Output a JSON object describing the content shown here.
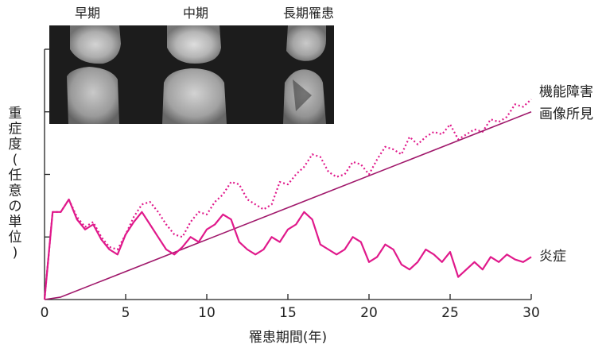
{
  "chart_data": {
    "type": "line",
    "xlabel": "罹患期間(年)",
    "ylabel": "重症度(任意の単位)",
    "xlim": [
      0,
      30
    ],
    "ylim": [
      0,
      100
    ],
    "x_ticks": [
      "0",
      "5",
      "10",
      "15",
      "20",
      "25",
      "30"
    ],
    "y_tick_values": [
      25,
      50,
      75,
      100
    ],
    "grid": false,
    "colors": {
      "series": "#e0198b",
      "axis": "#222222",
      "xray_bg": "#1c1c1c"
    },
    "stages": [
      "早期",
      "中期",
      "長期罹患"
    ],
    "series": [
      {
        "name": "機能障害",
        "style": "dotted",
        "x": [
          0,
          0.5,
          1.0,
          1.5,
          2.0,
          2.5,
          3.0,
          3.5,
          4.0,
          4.5,
          5.0,
          5.5,
          6.0,
          6.5,
          7.0,
          7.5,
          8.0,
          8.5,
          9.0,
          9.5,
          10.0,
          10.5,
          11.0,
          11.5,
          12.0,
          12.5,
          13.0,
          13.5,
          14.0,
          14.5,
          15.0,
          15.5,
          16.0,
          16.5,
          17.0,
          17.5,
          18.0,
          18.5,
          19.0,
          19.5,
          20.0,
          20.5,
          21.0,
          21.5,
          22.0,
          22.5,
          23.0,
          23.5,
          24.0,
          24.5,
          25.0,
          25.5,
          26.0,
          26.5,
          27.0,
          27.5,
          28.0,
          28.5,
          29.0,
          29.5,
          30.0
        ],
        "values": [
          0,
          35,
          35,
          40,
          33,
          29,
          31,
          25,
          21,
          20,
          26,
          33,
          38,
          39,
          35,
          30,
          26,
          25,
          31,
          35,
          34,
          39,
          42,
          47,
          46,
          40,
          38,
          36,
          38,
          47,
          46,
          50,
          53,
          58,
          57,
          51,
          49,
          50,
          55,
          54,
          50,
          56,
          61,
          60,
          58,
          65,
          62,
          65,
          67,
          66,
          70,
          64,
          66,
          68,
          67,
          72,
          71,
          73,
          78,
          77,
          80
        ]
      },
      {
        "name": "画像所見",
        "style": "solid",
        "x": [
          0,
          1.0,
          30.0
        ],
        "values": [
          0,
          1,
          75
        ]
      },
      {
        "name": "炎症",
        "style": "solid",
        "x": [
          0,
          0.5,
          1.0,
          1.5,
          2.0,
          2.5,
          3.0,
          3.5,
          4.0,
          4.5,
          5.0,
          5.5,
          6.0,
          6.5,
          7.0,
          7.5,
          8.0,
          8.5,
          9.0,
          9.5,
          10.0,
          10.5,
          11.0,
          11.5,
          12.0,
          12.5,
          13.0,
          13.5,
          14.0,
          14.5,
          15.0,
          15.5,
          16.0,
          16.5,
          17.0,
          17.5,
          18.0,
          18.5,
          19.0,
          19.5,
          20.0,
          20.5,
          21.0,
          21.5,
          22.0,
          22.5,
          23.0,
          23.5,
          24.0,
          24.5,
          25.0,
          25.5,
          26.0,
          26.5,
          27.0,
          27.5,
          28.0,
          28.5,
          29.0,
          29.5,
          30.0
        ],
        "values": [
          0,
          35,
          35,
          40,
          32,
          28,
          30,
          24,
          20,
          18,
          26,
          31,
          35,
          30,
          25,
          20,
          18,
          21,
          25,
          23,
          28,
          30,
          34,
          32,
          23,
          20,
          18,
          20,
          25,
          23,
          28,
          30,
          35,
          32,
          22,
          20,
          18,
          20,
          25,
          23,
          15,
          17,
          22,
          20,
          14,
          12,
          15,
          20,
          18,
          15,
          19,
          9,
          12,
          15,
          12,
          17,
          15,
          18,
          16,
          15,
          17
        ]
      }
    ]
  }
}
